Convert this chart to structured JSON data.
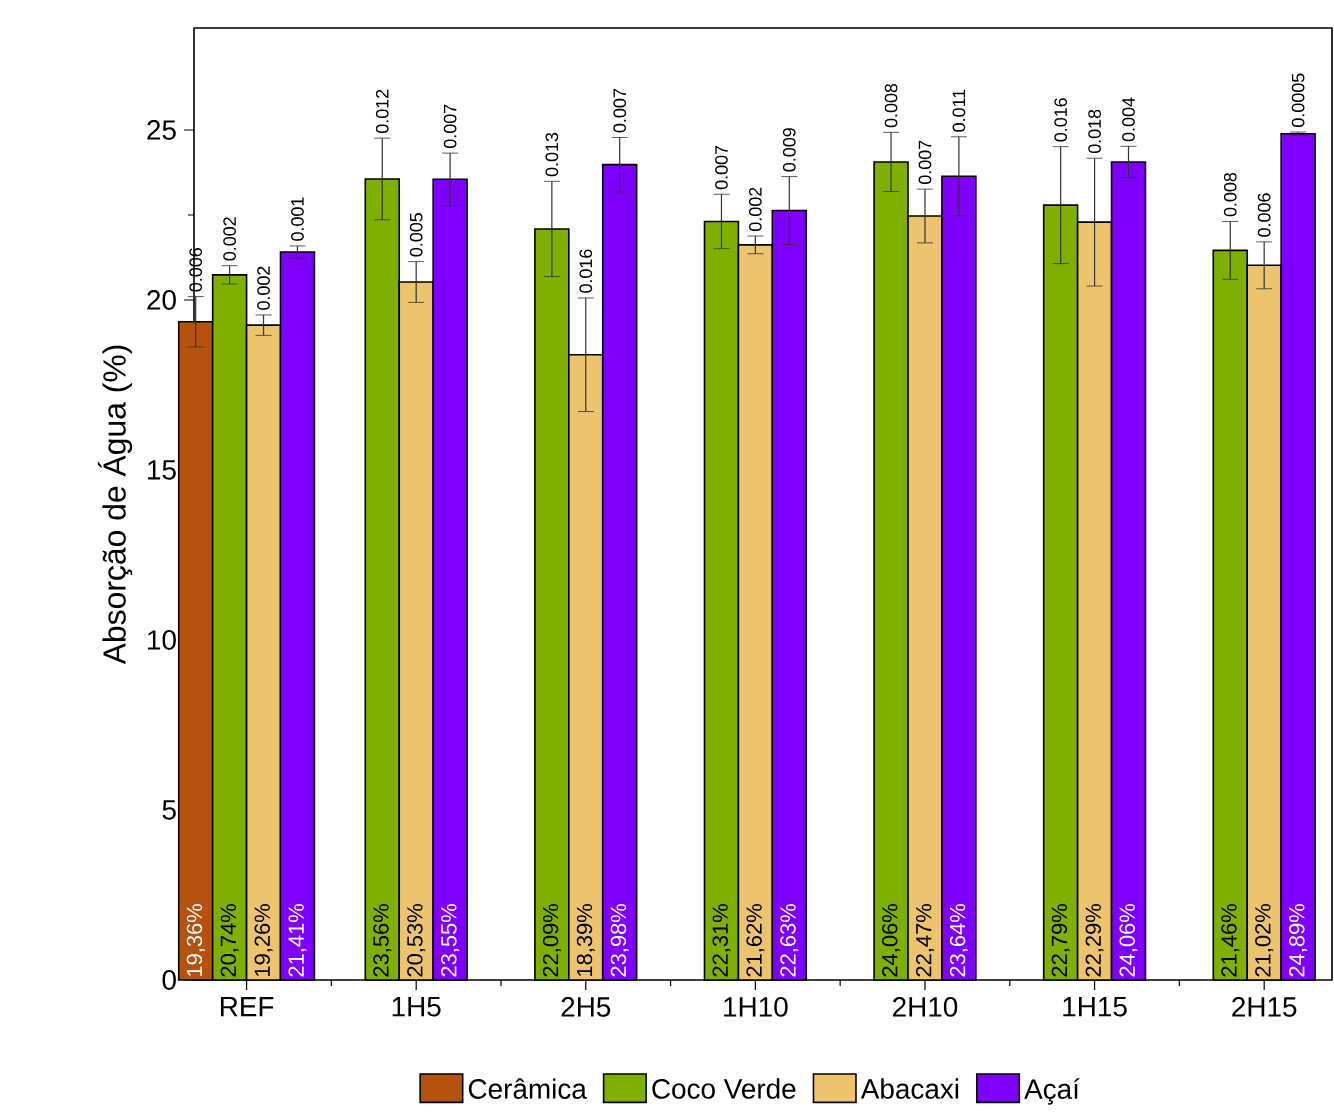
{
  "chart_data": {
    "type": "bar",
    "ylabel": "Absorção de Água (%)",
    "categories": [
      "REF",
      "1H5",
      "2H5",
      "1H10",
      "2H10",
      "1H15",
      "2H15"
    ],
    "series": [
      {
        "name": "Cerâmica",
        "color": "#b5520f",
        "values": [
          19.36,
          null,
          null,
          null,
          null,
          null,
          null
        ],
        "errors": [
          0.74,
          null,
          null,
          null,
          null,
          null,
          null
        ],
        "value_labels": [
          "19,36%",
          null,
          null,
          null,
          null,
          null,
          null
        ]
      },
      {
        "name": "Coco Verde",
        "color": "#7fb000",
        "values": [
          20.74,
          23.56,
          22.09,
          22.31,
          24.06,
          22.79,
          21.46
        ],
        "errors": [
          0.27,
          1.2,
          1.4,
          0.8,
          0.87,
          1.72,
          0.85
        ],
        "value_labels": [
          "20,74%",
          "23,56%",
          "22,09%",
          "22,31%",
          "24,06%",
          "22,79%",
          "21,46%"
        ]
      },
      {
        "name": "Abacaxi",
        "color": "#ecc46e",
        "values": [
          19.26,
          20.53,
          18.39,
          21.62,
          22.47,
          22.29,
          21.02
        ],
        "errors": [
          0.3,
          0.6,
          1.67,
          0.26,
          0.79,
          1.88,
          0.69
        ],
        "value_labels": [
          "19,26%",
          "20,53%",
          "18,39%",
          "21,62%",
          "22,47%",
          "22,29%",
          "21,02%"
        ]
      },
      {
        "name": "Açaí",
        "color": "#8000ff",
        "values": [
          21.41,
          23.55,
          23.98,
          22.63,
          23.64,
          24.06,
          24.89
        ],
        "errors": [
          0.18,
          0.77,
          0.8,
          1.0,
          1.16,
          0.46,
          0.05
        ],
        "value_labels": [
          "21,41%",
          "23,55%",
          "23,98%",
          "22,63%",
          "23,64%",
          "24,06%",
          "24,89%"
        ]
      }
    ],
    "ylim": [
      0,
      28
    ],
    "yticks": [
      0,
      5,
      10,
      15,
      20,
      25
    ],
    "legend": "bottom",
    "annotations": [
      "0.006",
      "0.002",
      "0.002",
      "0.001",
      "0.012",
      "0.005",
      "0.007",
      "0.013",
      "0.016",
      "0.007",
      "0.007",
      "0.002",
      "0.009",
      "0.008",
      "0.007",
      "0.011",
      "0.016",
      "0.018",
      "0.004",
      "0.008",
      "0.006",
      "0.0005"
    ]
  }
}
